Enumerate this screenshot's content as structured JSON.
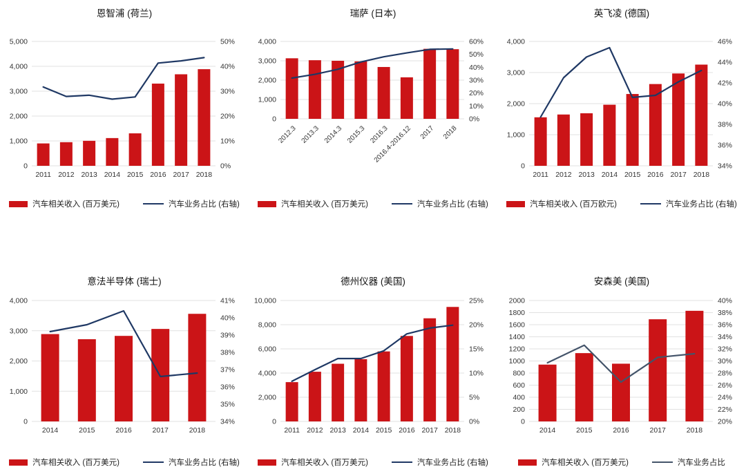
{
  "page": {
    "background": "#FFFFFF",
    "grid_color": "#E1E1E1",
    "axis_text_color": "#333333",
    "bar_color": "#CB1417",
    "line_color_navy": "#1F3864",
    "line_color_slate": "#44546A"
  },
  "chart_data": [
    {
      "type": "bar+line",
      "title": "恩智浦 (荷兰)",
      "categories": [
        "2011",
        "2012",
        "2013",
        "2014",
        "2015",
        "2016",
        "2017",
        "2018"
      ],
      "series": [
        {
          "name": "汽车相关收入 (百万美元)",
          "type": "bar",
          "axis": "left",
          "color": "#CB1417",
          "values": [
            900,
            950,
            1005,
            1115,
            1305,
            3305,
            3680,
            3885
          ]
        },
        {
          "name": "汽车业务占比 (右轴)",
          "type": "line",
          "axis": "right",
          "color": "#1F3864",
          "values": [
            31.7,
            27.9,
            28.4,
            26.8,
            27.7,
            41.3,
            42.2,
            43.5
          ]
        }
      ],
      "left_axis": {
        "min": 0,
        "max": 5000,
        "step": 1000,
        "format": "comma"
      },
      "right_axis": {
        "min": 0,
        "max": 50,
        "step": 10,
        "suffix": "%"
      },
      "rotate_x_labels": false,
      "grid": true,
      "legend_position": "bottom"
    },
    {
      "type": "bar+line",
      "title": "瑞萨 (日本)",
      "categories": [
        "2012.3",
        "2013.3",
        "2014.3",
        "2015.3",
        "2016.3",
        "2016.4-2016.12",
        "2017",
        "2018"
      ],
      "series": [
        {
          "name": "汽车相关收入 (百万美元)",
          "type": "bar",
          "axis": "left",
          "color": "#CB1417",
          "values": [
            3130,
            3030,
            3000,
            2970,
            2680,
            2145,
            3620,
            3600
          ]
        },
        {
          "name": "汽车业务占比 (右轴)",
          "type": "line",
          "axis": "right",
          "color": "#1F3864",
          "values": [
            31.6,
            34.5,
            38.4,
            44.1,
            48.1,
            51.1,
            53.9,
            54.2
          ]
        }
      ],
      "left_axis": {
        "min": 0,
        "max": 4000,
        "step": 1000,
        "format": "comma"
      },
      "right_axis": {
        "min": 0,
        "max": 60,
        "step": 10,
        "suffix": "%"
      },
      "rotate_x_labels": true,
      "grid": true,
      "legend_position": "bottom"
    },
    {
      "type": "bar+line",
      "title": "英飞凌 (德国)",
      "categories": [
        "2011",
        "2012",
        "2013",
        "2014",
        "2015",
        "2016",
        "2017",
        "2018"
      ],
      "series": [
        {
          "name": "汽车相关收入 (百万欧元)",
          "type": "bar",
          "axis": "left",
          "color": "#CB1417",
          "values": [
            1560,
            1650,
            1690,
            1965,
            2310,
            2630,
            2970,
            3255
          ]
        },
        {
          "name": "汽车业务占比 (右轴)",
          "type": "line",
          "axis": "right",
          "color": "#1F3864",
          "values": [
            38.7,
            42.5,
            44.5,
            45.4,
            40.6,
            40.8,
            42.1,
            43.2
          ]
        }
      ],
      "left_axis": {
        "min": 0,
        "max": 4000,
        "step": 1000,
        "format": "comma"
      },
      "right_axis": {
        "min": 34,
        "max": 46,
        "step": 2,
        "suffix": "%"
      },
      "rotate_x_labels": false,
      "grid": true,
      "legend_position": "bottom"
    },
    {
      "type": "bar+line",
      "title": "意法半导体 (瑞士)",
      "categories": [
        "2014",
        "2015",
        "2016",
        "2017",
        "2018"
      ],
      "series": [
        {
          "name": "汽车相关收入 (百万美元)",
          "type": "bar",
          "axis": "left",
          "color": "#CB1417",
          "values": [
            2890,
            2720,
            2830,
            3060,
            3560
          ]
        },
        {
          "name": "汽车业务占比 (右轴)",
          "type": "line",
          "axis": "right",
          "color": "#1F3864",
          "values": [
            39.2,
            39.6,
            40.4,
            36.6,
            36.8
          ]
        }
      ],
      "left_axis": {
        "min": 0,
        "max": 4000,
        "step": 1000,
        "format": "comma"
      },
      "right_axis": {
        "min": 34,
        "max": 41,
        "step": 1,
        "suffix": "%"
      },
      "rotate_x_labels": false,
      "grid": true,
      "legend_position": "bottom"
    },
    {
      "type": "bar+line",
      "title": "德州仪器 (美国)",
      "categories": [
        "2011",
        "2012",
        "2013",
        "2014",
        "2015",
        "2016",
        "2017",
        "2018"
      ],
      "series": [
        {
          "name": "汽车相关收入 (百万美元)",
          "type": "bar",
          "axis": "left",
          "color": "#CB1417",
          "values": [
            3250,
            4110,
            4770,
            5150,
            5790,
            7070,
            8530,
            9470
          ]
        },
        {
          "name": "汽车业务占比 (右轴)",
          "type": "line",
          "axis": "right",
          "color": "#1F3864",
          "values": [
            8.3,
            10.7,
            13,
            13,
            14.6,
            18.1,
            19.3,
            19.9
          ]
        }
      ],
      "left_axis": {
        "min": 0,
        "max": 10000,
        "step": 2000,
        "format": "comma"
      },
      "right_axis": {
        "min": 0,
        "max": 25,
        "step": 5,
        "suffix": "%"
      },
      "rotate_x_labels": false,
      "grid": true,
      "legend_position": "bottom"
    },
    {
      "type": "bar+line",
      "title": "安森美 (美国)",
      "categories": [
        "2014",
        "2015",
        "2016",
        "2017",
        "2018"
      ],
      "series": [
        {
          "name": "汽车相关收入 (百万美元)",
          "type": "bar",
          "axis": "left",
          "color": "#CB1417",
          "values": [
            940,
            1130,
            955,
            1690,
            1830
          ]
        },
        {
          "name": "汽车业务占比",
          "type": "line",
          "axis": "right",
          "color": "#44546A",
          "values": [
            29.7,
            32.6,
            26.5,
            30.6,
            31.2
          ]
        }
      ],
      "left_axis": {
        "min": 0,
        "max": 2000,
        "step": 200,
        "format": "plain"
      },
      "right_axis": {
        "min": 20,
        "max": 40,
        "step": 2,
        "suffix": "%"
      },
      "rotate_x_labels": false,
      "grid": true,
      "legend_position": "bottom"
    }
  ]
}
